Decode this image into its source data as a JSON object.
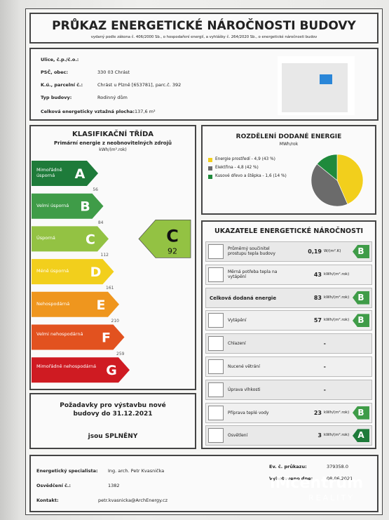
{
  "header": {
    "title": "PRŮKAZ ENERGETICKÉ NÁROČNOSTI BUDOVY",
    "subtitle": "vydaný podle zákona č. 406/2000 Sb., o hospodaření energií, a vyhlášky č. 264/2020 Sb., o energetické náročnosti budov"
  },
  "building": {
    "rows": [
      [
        "Ulice, č.p./č.o.:"
      ],
      [
        "PSČ, obec:",
        "330 03 Chrást"
      ],
      [
        "K.ú., parcelní č.:",
        "Chrást u Plzně [653781], parc.č. 392"
      ],
      [
        "Typ budovy:",
        "Rodinný dům"
      ],
      [
        "Celková energeticky vztažná plocha:",
        "137,6 m²"
      ]
    ]
  },
  "classification": {
    "title": "KLASIFIKAČNÍ TŘÍDA",
    "subtitle": "Primární energie z neobnovitelných zdrojů",
    "unit": "kWh/(m².rok)",
    "classes": [
      {
        "letter": "A",
        "label": "Mimořádně úsporná",
        "limit": 56,
        "color": "#1e7b3a"
      },
      {
        "letter": "B",
        "label": "Velmi úsporná",
        "limit": 84,
        "color": "#3f9c48"
      },
      {
        "letter": "C",
        "label": "Úsporná",
        "limit": 112,
        "color": "#93c243"
      },
      {
        "letter": "D",
        "label": "Méně úsporná",
        "limit": 161,
        "color": "#f2cf1c"
      },
      {
        "letter": "E",
        "label": "Nehospodárná",
        "limit": 210,
        "color": "#ef961e"
      },
      {
        "letter": "F",
        "label": "Velmi nehospodárná",
        "limit": 259,
        "color": "#e2521f"
      },
      {
        "letter": "G",
        "label": "Mimořádně nehospodárná",
        "color": "#cf1b22"
      }
    ],
    "result": {
      "class": "C",
      "value": 92
    }
  },
  "requirements": {
    "text": "Požadavky pro výstavbu nové budovy do 31.12.2021",
    "result": "jsou SPLNĚNY"
  },
  "energy_split": {
    "title": "ROZDĚLENÍ DODANÉ ENERGIE",
    "unit": "MWh/rok",
    "items": [
      {
        "label": "Energie prostředí - 4,9 (43 %)",
        "share": 43,
        "color": "#f2cf1c"
      },
      {
        "label": "Elektřina - 4,8 (42 %)",
        "share": 42,
        "color": "#6b6b6b"
      },
      {
        "label": "Kusové dřevo a štěpka - 1,6 (14 %)",
        "share": 14,
        "color": "#1f8a3c"
      }
    ]
  },
  "indicators": {
    "title": "UKAZATELE ENERGETICKÉ NÁROČNOSTI",
    "rows": [
      {
        "label": "Průměrný součinitel prostupu tepla budovy",
        "value": "0,19",
        "unit": "W/(m².K)",
        "class": "B"
      },
      {
        "label": "Měrná potřeba tepla na vytápění",
        "value": "43",
        "unit": "kWh/(m².rok)"
      },
      {
        "label": "Celková dodaná energie",
        "value": "83",
        "unit": "kWh/(m².rok)",
        "class": "B",
        "emphasis": true
      },
      {
        "label": "Vytápění",
        "value": "57",
        "unit": "kWh/(m².rok)",
        "class": "B"
      },
      {
        "label": "Chlazení",
        "value": "-"
      },
      {
        "label": "Nucené větrání",
        "value": "-"
      },
      {
        "label": "Úprava vlhkosti",
        "value": "-"
      },
      {
        "label": "Příprava teplé vody",
        "value": "23",
        "unit": "kWh/(m².rok)",
        "class": "B"
      },
      {
        "label": "Osvětlení",
        "value": "3",
        "unit": "kWh/(m².rok)",
        "class": "A"
      }
    ]
  },
  "footer": {
    "left": [
      [
        "Energetický specialista:",
        "Ing. arch. Petr Kvasnička"
      ],
      [
        "Osvědčení č.:",
        "1382"
      ],
      [
        "Kontakt:",
        "petr.kvasnicka@ArchEnergy.cz"
      ]
    ],
    "right": [
      [
        "Ev. č. průkazu:",
        "379358.0"
      ],
      [
        "Vyhotoveno dne:",
        "08.06.2021"
      ]
    ]
  },
  "watermark": [
    "iMcentrum",
    "REALITY"
  ]
}
